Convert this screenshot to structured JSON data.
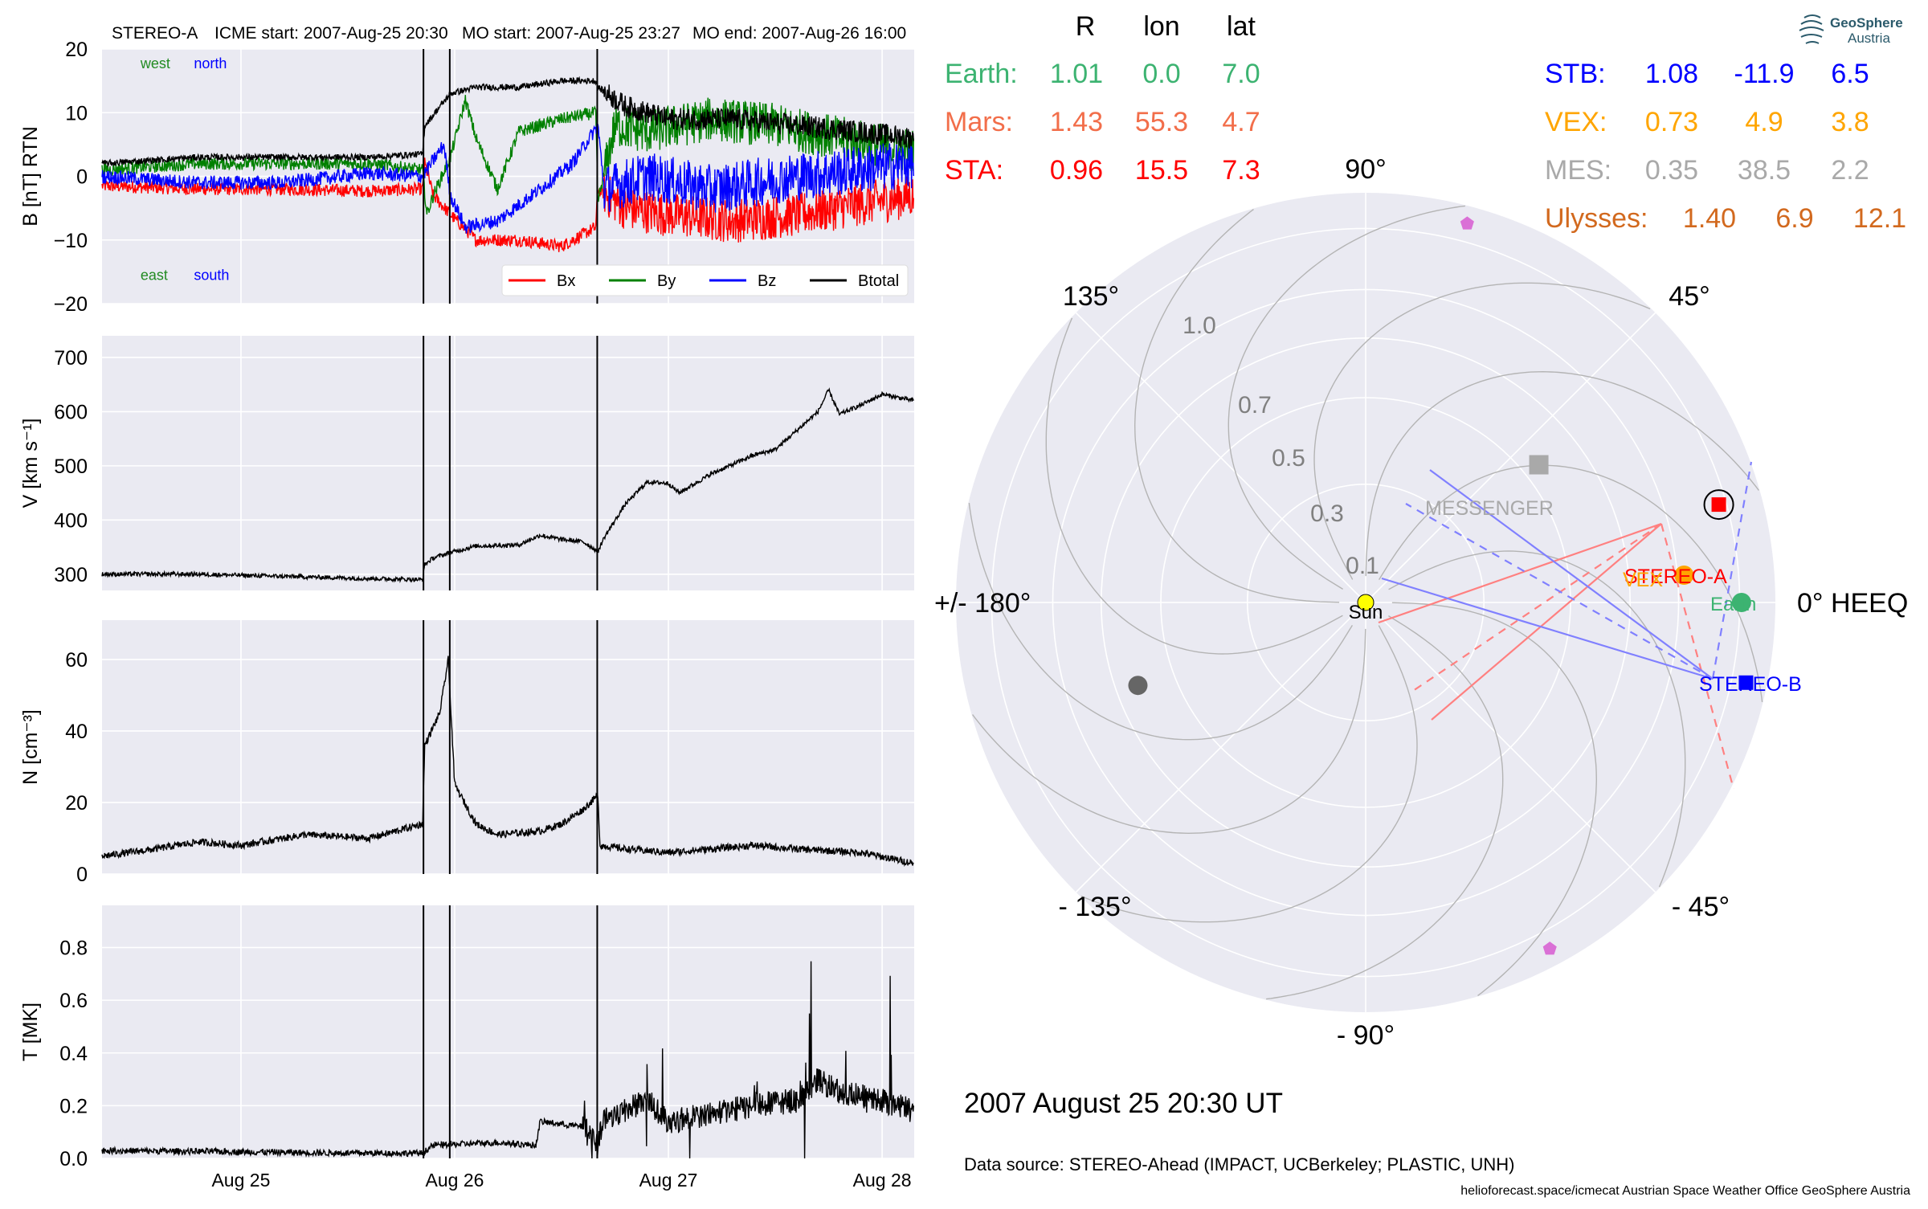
{
  "header": {
    "spacecraft": "STEREO-A",
    "icme_start": "ICME start: 2007-Aug-25 20:30",
    "mo_start": "MO start: 2007-Aug-25 23:27",
    "mo_end": "MO end: 2007-Aug-26 16:00"
  },
  "positions": {
    "columns": [
      "R",
      "lon",
      "lat"
    ],
    "left": [
      {
        "name": "Earth:",
        "R": "1.01",
        "lon": "0.0",
        "lat": "7.0",
        "color": "#3cb371"
      },
      {
        "name": "Mars:",
        "R": "1.43",
        "lon": "55.3",
        "lat": "4.7",
        "color": "#f26e4a"
      },
      {
        "name": "STA:",
        "R": "0.96",
        "lon": "15.5",
        "lat": "7.3",
        "color": "#ff0000"
      }
    ],
    "right": [
      {
        "name": "STB:",
        "R": "1.08",
        "lon": "-11.9",
        "lat": "6.5",
        "color": "#0000ff"
      },
      {
        "name": "VEX:",
        "R": "0.73",
        "lon": "4.9",
        "lat": "3.8",
        "color": "#ffa500"
      },
      {
        "name": "MES:",
        "R": "0.35",
        "lon": "38.5",
        "lat": "2.2",
        "color": "#a9a9a9"
      },
      {
        "name": "Ulysses:",
        "R": "1.40",
        "lon": "6.9",
        "lat": "12.1",
        "color": "#d2691e"
      }
    ]
  },
  "polar": {
    "angle_labels": [
      "90°",
      "45°",
      "0° HEEQ",
      "- 45°",
      "- 90°",
      "- 135°",
      "+/- 180°",
      "135°"
    ],
    "radius_labels": [
      "0.1",
      "0.3",
      "0.5",
      "0.7",
      "1.0"
    ],
    "bodies": [
      {
        "label": "Sun",
        "color": "#ffff00",
        "r": 0,
        "lon": 0
      },
      {
        "label": "Earth",
        "color": "#3cb371",
        "r": 1.01,
        "lon": 0.0
      },
      {
        "label": "STEREO-A",
        "color": "#ff0000",
        "r": 0.96,
        "lon": 15.5
      },
      {
        "label": "STEREO-B",
        "color": "#0000ff",
        "r": 1.08,
        "lon": -11.9
      },
      {
        "label": "MESSENGER",
        "color": "#a9a9a9",
        "r": 0.35,
        "lon": 38.5
      },
      {
        "label": "VEX",
        "color": "#ffa500",
        "r": 0.73,
        "lon": 4.9
      },
      {
        "label": "",
        "color": "#666666",
        "r": 0.42,
        "lon": -160
      },
      {
        "label": "",
        "color": "#da70d6",
        "r": 1.1,
        "lon": 75
      },
      {
        "label": "",
        "color": "#da70d6",
        "r": 1.1,
        "lon": -62
      }
    ],
    "date": "2007 August 25  20:30 UT",
    "source": "Data source: STEREO-Ahead (IMPACT, UCBerkeley; PLASTIC, UNH)",
    "credits": "helioforecast.space/icmecat   Austrian Space Weather Office   GeoSphere Austria"
  },
  "logo": {
    "line1": "GeoSphere",
    "line2": "Austria"
  },
  "chart_data": {
    "type": "line",
    "x_unit": "day of August 2007",
    "xlim": [
      24.35,
      28.15
    ],
    "x_ticks": [
      {
        "value": 25,
        "label": "Aug 25"
      },
      {
        "value": 26,
        "label": "Aug 26"
      },
      {
        "value": 27,
        "label": "Aug 27"
      },
      {
        "value": 28,
        "label": "Aug 28"
      }
    ],
    "event_lines": [
      25.854,
      25.977,
      26.667
    ],
    "panels": [
      {
        "ylabel": "B [nT] RTN",
        "ylim": [
          -20,
          20
        ],
        "yticks": [
          20,
          10,
          0,
          -10,
          -20
        ],
        "ytick_labels": [
          "20",
          "10",
          "0",
          "−10",
          "−20"
        ],
        "annotations": [
          {
            "text": "west",
            "color": "#228b22",
            "x": 24.53,
            "y": 17
          },
          {
            "text": "north",
            "color": "#0000ff",
            "x": 24.78,
            "y": 17
          },
          {
            "text": "east",
            "color": "#228b22",
            "x": 24.53,
            "y": -16.3
          },
          {
            "text": "south",
            "color": "#0000ff",
            "x": 24.78,
            "y": -16.3
          }
        ],
        "legend": {
          "placement": "lower right",
          "entries": [
            {
              "name": "Bx",
              "color": "#ff0000"
            },
            {
              "name": "By",
              "color": "#008000"
            },
            {
              "name": "Bz",
              "color": "#0000ff"
            },
            {
              "name": "Btotal",
              "color": "#000000"
            }
          ]
        },
        "series": [
          {
            "name": "Bx",
            "color": "#ff0000",
            "noise": 1.0,
            "points": [
              [
                24.35,
                -1.5
              ],
              [
                24.8,
                -2
              ],
              [
                25.2,
                -2
              ],
              [
                25.6,
                -2.3
              ],
              [
                25.85,
                -2
              ],
              [
                25.86,
                2
              ],
              [
                25.9,
                -3
              ],
              [
                25.98,
                -6
              ],
              [
                26.1,
                -10
              ],
              [
                26.3,
                -10
              ],
              [
                26.5,
                -11
              ],
              [
                26.66,
                -8
              ],
              [
                26.67,
                -2
              ],
              [
                26.8,
                -5
              ],
              [
                27.0,
                -6
              ],
              [
                27.3,
                -7
              ],
              [
                27.6,
                -6
              ],
              [
                28.15,
                -3
              ]
            ]
          },
          {
            "name": "By",
            "color": "#008000",
            "noise": 1.0,
            "points": [
              [
                24.35,
                1
              ],
              [
                24.8,
                2
              ],
              [
                25.2,
                2
              ],
              [
                25.6,
                2
              ],
              [
                25.85,
                1
              ],
              [
                25.87,
                -6
              ],
              [
                25.9,
                -3
              ],
              [
                25.98,
                3
              ],
              [
                26.05,
                12
              ],
              [
                26.1,
                6
              ],
              [
                26.2,
                -2
              ],
              [
                26.3,
                7
              ],
              [
                26.5,
                9
              ],
              [
                26.66,
                10
              ],
              [
                26.67,
                -4
              ],
              [
                26.75,
                8
              ],
              [
                26.9,
                7
              ],
              [
                27.2,
                9
              ],
              [
                27.5,
                8
              ],
              [
                27.8,
                6
              ],
              [
                28.15,
                4
              ]
            ]
          },
          {
            "name": "Bz",
            "color": "#0000ff",
            "noise": 1.1,
            "points": [
              [
                24.35,
                0
              ],
              [
                24.8,
                -1
              ],
              [
                25.2,
                -1
              ],
              [
                25.6,
                0.5
              ],
              [
                25.85,
                0
              ],
              [
                25.95,
                5
              ],
              [
                25.98,
                -3
              ],
              [
                26.05,
                -8
              ],
              [
                26.2,
                -7
              ],
              [
                26.4,
                -2
              ],
              [
                26.55,
                2
              ],
              [
                26.67,
                8
              ],
              [
                26.7,
                -2
              ],
              [
                26.9,
                0
              ],
              [
                27.2,
                -2
              ],
              [
                27.6,
                0
              ],
              [
                28.15,
                2
              ]
            ]
          },
          {
            "name": "Btotal",
            "color": "#000000",
            "noise": 0.5,
            "points": [
              [
                24.35,
                2
              ],
              [
                24.8,
                3
              ],
              [
                25.2,
                3
              ],
              [
                25.6,
                3
              ],
              [
                25.85,
                3.5
              ],
              [
                25.86,
                8
              ],
              [
                25.98,
                13
              ],
              [
                26.1,
                14
              ],
              [
                26.3,
                14
              ],
              [
                26.5,
                15
              ],
              [
                26.66,
                15
              ],
              [
                26.67,
                14
              ],
              [
                26.8,
                11
              ],
              [
                27.0,
                9
              ],
              [
                27.3,
                9
              ],
              [
                27.6,
                8
              ],
              [
                27.9,
                7
              ],
              [
                28.15,
                6
              ]
            ]
          }
        ]
      },
      {
        "ylabel": "V [km s⁻¹]",
        "ylim": [
          270,
          740
        ],
        "yticks": [
          700,
          600,
          500,
          400,
          300
        ],
        "ytick_labels": [
          "700",
          "600",
          "500",
          "400",
          "300"
        ],
        "series": [
          {
            "name": "V",
            "color": "#000000",
            "noise": 4,
            "points": [
              [
                24.35,
                300
              ],
              [
                24.8,
                300
              ],
              [
                25.2,
                296
              ],
              [
                25.6,
                292
              ],
              [
                25.85,
                290
              ],
              [
                25.86,
                318
              ],
              [
                25.9,
                330
              ],
              [
                25.98,
                340
              ],
              [
                26.1,
                352
              ],
              [
                26.3,
                354
              ],
              [
                26.4,
                372
              ],
              [
                26.5,
                364
              ],
              [
                26.6,
                360
              ],
              [
                26.67,
                342
              ],
              [
                26.7,
                368
              ],
              [
                26.8,
                430
              ],
              [
                26.9,
                470
              ],
              [
                27.0,
                468
              ],
              [
                27.05,
                450
              ],
              [
                27.2,
                485
              ],
              [
                27.4,
                520
              ],
              [
                27.5,
                530
              ],
              [
                27.6,
                565
              ],
              [
                27.7,
                600
              ],
              [
                27.75,
                640
              ],
              [
                27.8,
                595
              ],
              [
                27.9,
                612
              ],
              [
                28.0,
                632
              ],
              [
                28.15,
                620
              ]
            ]
          }
        ]
      },
      {
        "ylabel": "N [cm⁻³]",
        "ylim": [
          0,
          71
        ],
        "yticks": [
          60,
          40,
          20,
          0
        ],
        "ytick_labels": [
          "60",
          "40",
          "20",
          "0"
        ],
        "series": [
          {
            "name": "N",
            "color": "#000000",
            "noise": 1,
            "points": [
              [
                24.35,
                5
              ],
              [
                24.6,
                7
              ],
              [
                24.8,
                9
              ],
              [
                25.0,
                8
              ],
              [
                25.3,
                11
              ],
              [
                25.6,
                10
              ],
              [
                25.85,
                14
              ],
              [
                25.86,
                36
              ],
              [
                25.93,
                45
              ],
              [
                25.97,
                60
              ],
              [
                26.0,
                25
              ],
              [
                26.1,
                14
              ],
              [
                26.2,
                11
              ],
              [
                26.4,
                12
              ],
              [
                26.5,
                14
              ],
              [
                26.6,
                18
              ],
              [
                26.67,
                22
              ],
              [
                26.68,
                8
              ],
              [
                26.8,
                7
              ],
              [
                27.0,
                6
              ],
              [
                27.2,
                7
              ],
              [
                27.4,
                8
              ],
              [
                27.6,
                7
              ],
              [
                27.9,
                6
              ],
              [
                28.15,
                3
              ]
            ]
          }
        ]
      },
      {
        "ylabel": "T [MK]",
        "ylim": [
          0,
          0.96
        ],
        "yticks": [
          0.8,
          0.6,
          0.4,
          0.2,
          0.0
        ],
        "ytick_labels": [
          "0.8",
          "0.6",
          "0.4",
          "0.2",
          "0.0"
        ],
        "series": [
          {
            "name": "T",
            "color": "#000000",
            "noise": 0.012,
            "points": [
              [
                24.35,
                0.03
              ],
              [
                25.0,
                0.025
              ],
              [
                25.5,
                0.02
              ],
              [
                25.85,
                0.02
              ],
              [
                25.9,
                0.05
              ],
              [
                26.2,
                0.06
              ],
              [
                26.38,
                0.05
              ],
              [
                26.4,
                0.14
              ],
              [
                26.6,
                0.12
              ],
              [
                26.67,
                0.06
              ],
              [
                26.7,
                0.15
              ],
              [
                26.9,
                0.22
              ],
              [
                27.0,
                0.14
              ],
              [
                27.2,
                0.17
              ],
              [
                27.4,
                0.2
              ],
              [
                27.6,
                0.22
              ],
              [
                27.7,
                0.3
              ],
              [
                27.8,
                0.25
              ],
              [
                28.0,
                0.22
              ],
              [
                28.15,
                0.18
              ]
            ]
          }
        ]
      }
    ]
  }
}
